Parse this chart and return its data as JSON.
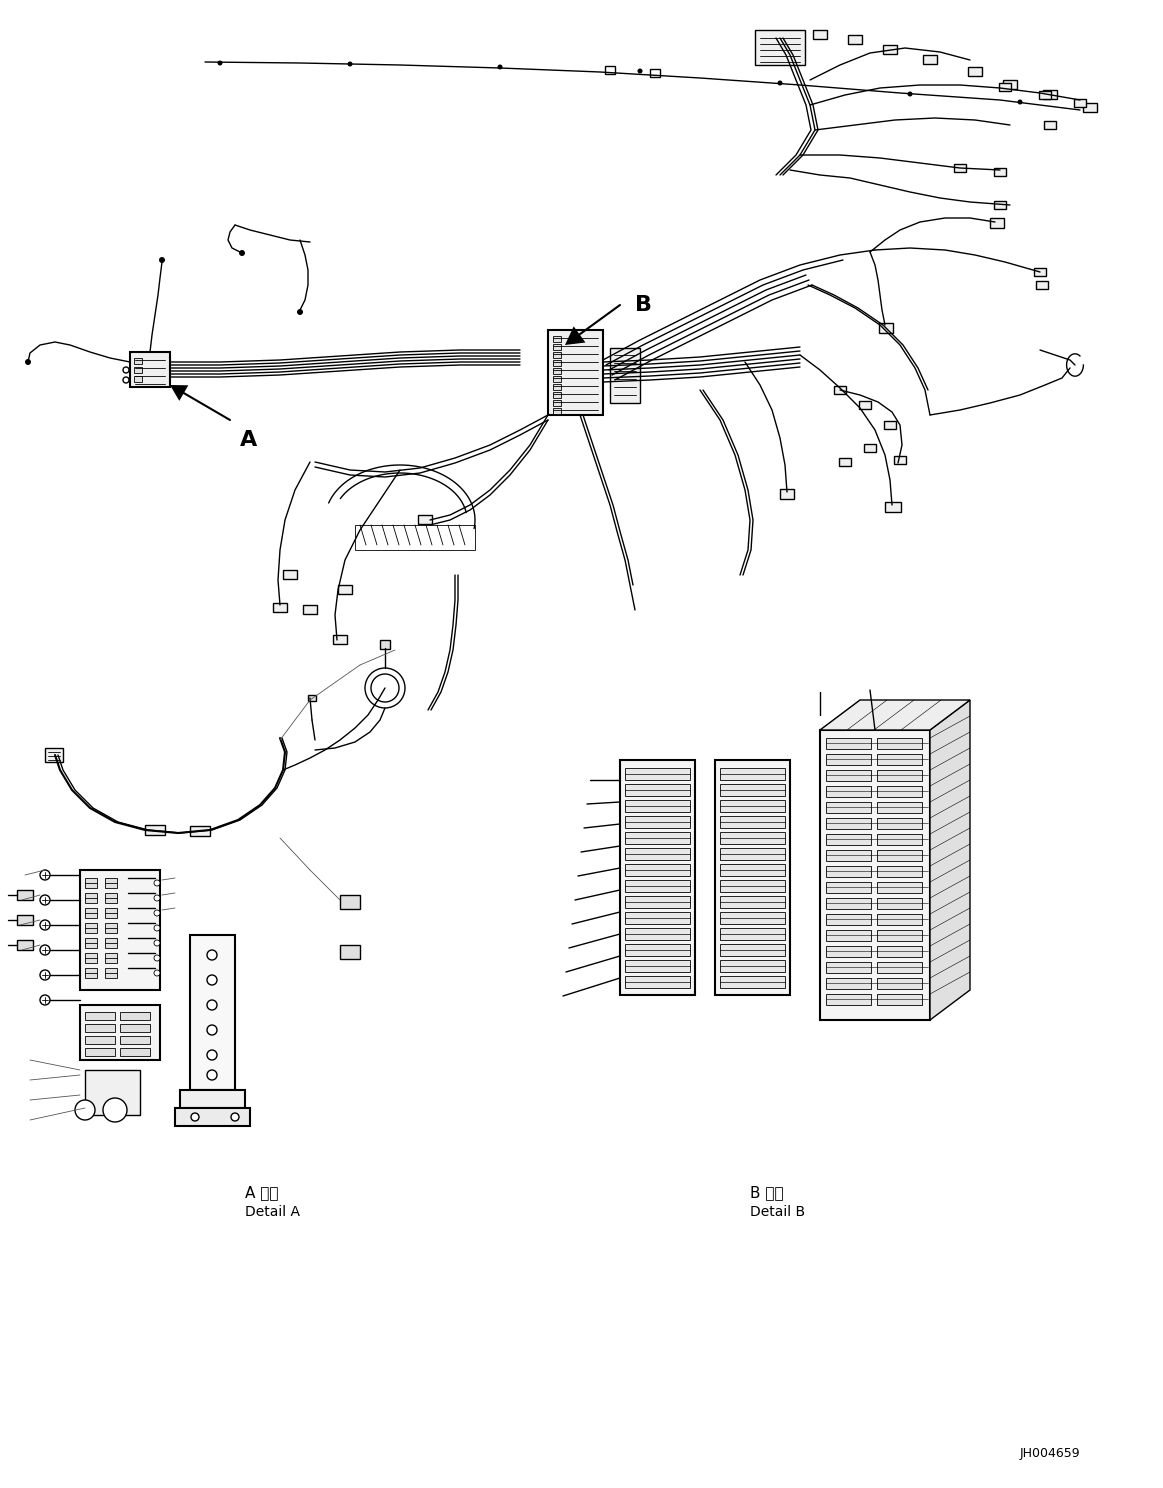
{
  "background_color": "#ffffff",
  "line_color": "#000000",
  "part_id": "JH004659",
  "label_A": "A",
  "label_B": "B",
  "detail_A_jp": "A 詳細",
  "detail_A_en": "Detail A",
  "detail_B_jp": "B 詳細",
  "detail_B_en": "Detail B",
  "figsize": [
    11.63,
    14.88
  ],
  "dpi": 100
}
